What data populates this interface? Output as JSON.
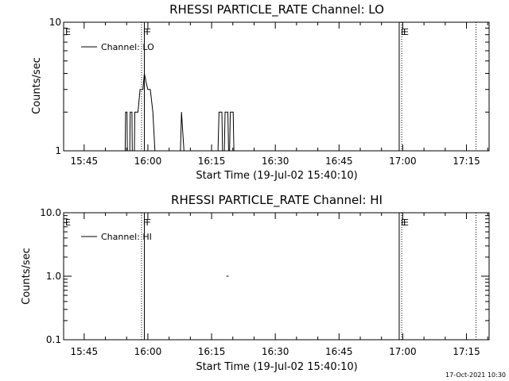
{
  "footer": {
    "timestamp": "17-Oct-2021 10:30"
  },
  "chart_data": [
    {
      "type": "line",
      "title": "RHESSI PARTICLE_RATE Channel: LO",
      "xlabel": "Start Time (19-Jul-02 15:40:10)",
      "ylabel": "Counts/sec",
      "yscale": "log",
      "ylim": [
        1,
        10
      ],
      "xlim": [
        "15:40:10",
        "17:20:20"
      ],
      "y_tick_labels": [
        "1",
        "10"
      ],
      "x_tick_labels": [
        "15:45",
        "16:00",
        "16:15",
        "16:30",
        "16:45",
        "17:00",
        "17:15"
      ],
      "legend": {
        "position": "top-left",
        "entries": [
          "Channel: LO"
        ]
      },
      "markers": [
        {
          "label": "E",
          "time": "15:40:10",
          "style": "solid"
        },
        {
          "label": "F",
          "time": "15:58:30",
          "style": "dotted"
        },
        {
          "label": "F",
          "time": "15:59:10",
          "style": "solid"
        },
        {
          "label": "E",
          "time": "16:59:10",
          "style": "solid"
        },
        {
          "label": "E",
          "time": "16:59:45",
          "style": "dotted"
        },
        {
          "label": "",
          "time": "17:17:15",
          "style": "dotted"
        }
      ],
      "series": [
        {
          "name": "Channel: LO",
          "points": [
            [
              "15:54:40",
              1
            ],
            [
              "15:54:45",
              2
            ],
            [
              "15:55:05",
              2
            ],
            [
              "15:55:10",
              1
            ],
            [
              "15:55:45",
              1
            ],
            [
              "15:55:50",
              2
            ],
            [
              "15:56:15",
              2
            ],
            [
              "15:56:20",
              1
            ],
            [
              "15:56:50",
              1
            ],
            [
              "15:56:55",
              2
            ],
            [
              "15:57:40",
              2
            ],
            [
              "15:58:10",
              3
            ],
            [
              "15:58:50",
              3
            ],
            [
              "15:59:10",
              4
            ],
            [
              "15:59:30",
              3.5
            ],
            [
              "16:00:00",
              3
            ],
            [
              "16:00:35",
              3
            ],
            [
              "16:01:10",
              2
            ],
            [
              "16:01:40",
              1
            ],
            [
              "16:07:40",
              1
            ],
            [
              "16:07:55",
              2
            ],
            [
              "16:08:30",
              1
            ],
            [
              "16:16:30",
              1
            ],
            [
              "16:16:45",
              2
            ],
            [
              "16:17:25",
              2
            ],
            [
              "16:17:35",
              1
            ],
            [
              "16:18:00",
              1
            ],
            [
              "16:18:10",
              2
            ],
            [
              "16:18:50",
              2
            ],
            [
              "16:19:00",
              1
            ],
            [
              "16:19:15",
              1
            ],
            [
              "16:19:25",
              2
            ],
            [
              "16:20:05",
              2
            ],
            [
              "16:20:15",
              1
            ]
          ]
        }
      ]
    },
    {
      "type": "line",
      "title": "RHESSI PARTICLE_RATE Channel: HI",
      "xlabel": "Start Time (19-Jul-02 15:40:10)",
      "ylabel": "Counts/sec",
      "yscale": "log",
      "ylim": [
        0.1,
        10
      ],
      "xlim": [
        "15:40:10",
        "17:20:20"
      ],
      "y_tick_labels": [
        "0.1",
        "1.0",
        "10.0"
      ],
      "x_tick_labels": [
        "15:45",
        "16:00",
        "16:15",
        "16:30",
        "16:45",
        "17:00",
        "17:15"
      ],
      "legend": {
        "position": "top-left",
        "entries": [
          "Channel: HI"
        ]
      },
      "markers": [
        {
          "label": "E",
          "time": "15:40:10",
          "style": "solid"
        },
        {
          "label": "F",
          "time": "15:58:30",
          "style": "dotted"
        },
        {
          "label": "F",
          "time": "15:59:10",
          "style": "solid"
        },
        {
          "label": "E",
          "time": "16:59:10",
          "style": "solid"
        },
        {
          "label": "E",
          "time": "16:59:45",
          "style": "dotted"
        },
        {
          "label": "",
          "time": "17:17:15",
          "style": "dotted"
        }
      ],
      "series": [
        {
          "name": "Channel: HI",
          "points": [
            [
              "16:18:30",
              1
            ],
            [
              "16:19:00",
              1
            ]
          ]
        }
      ]
    }
  ]
}
